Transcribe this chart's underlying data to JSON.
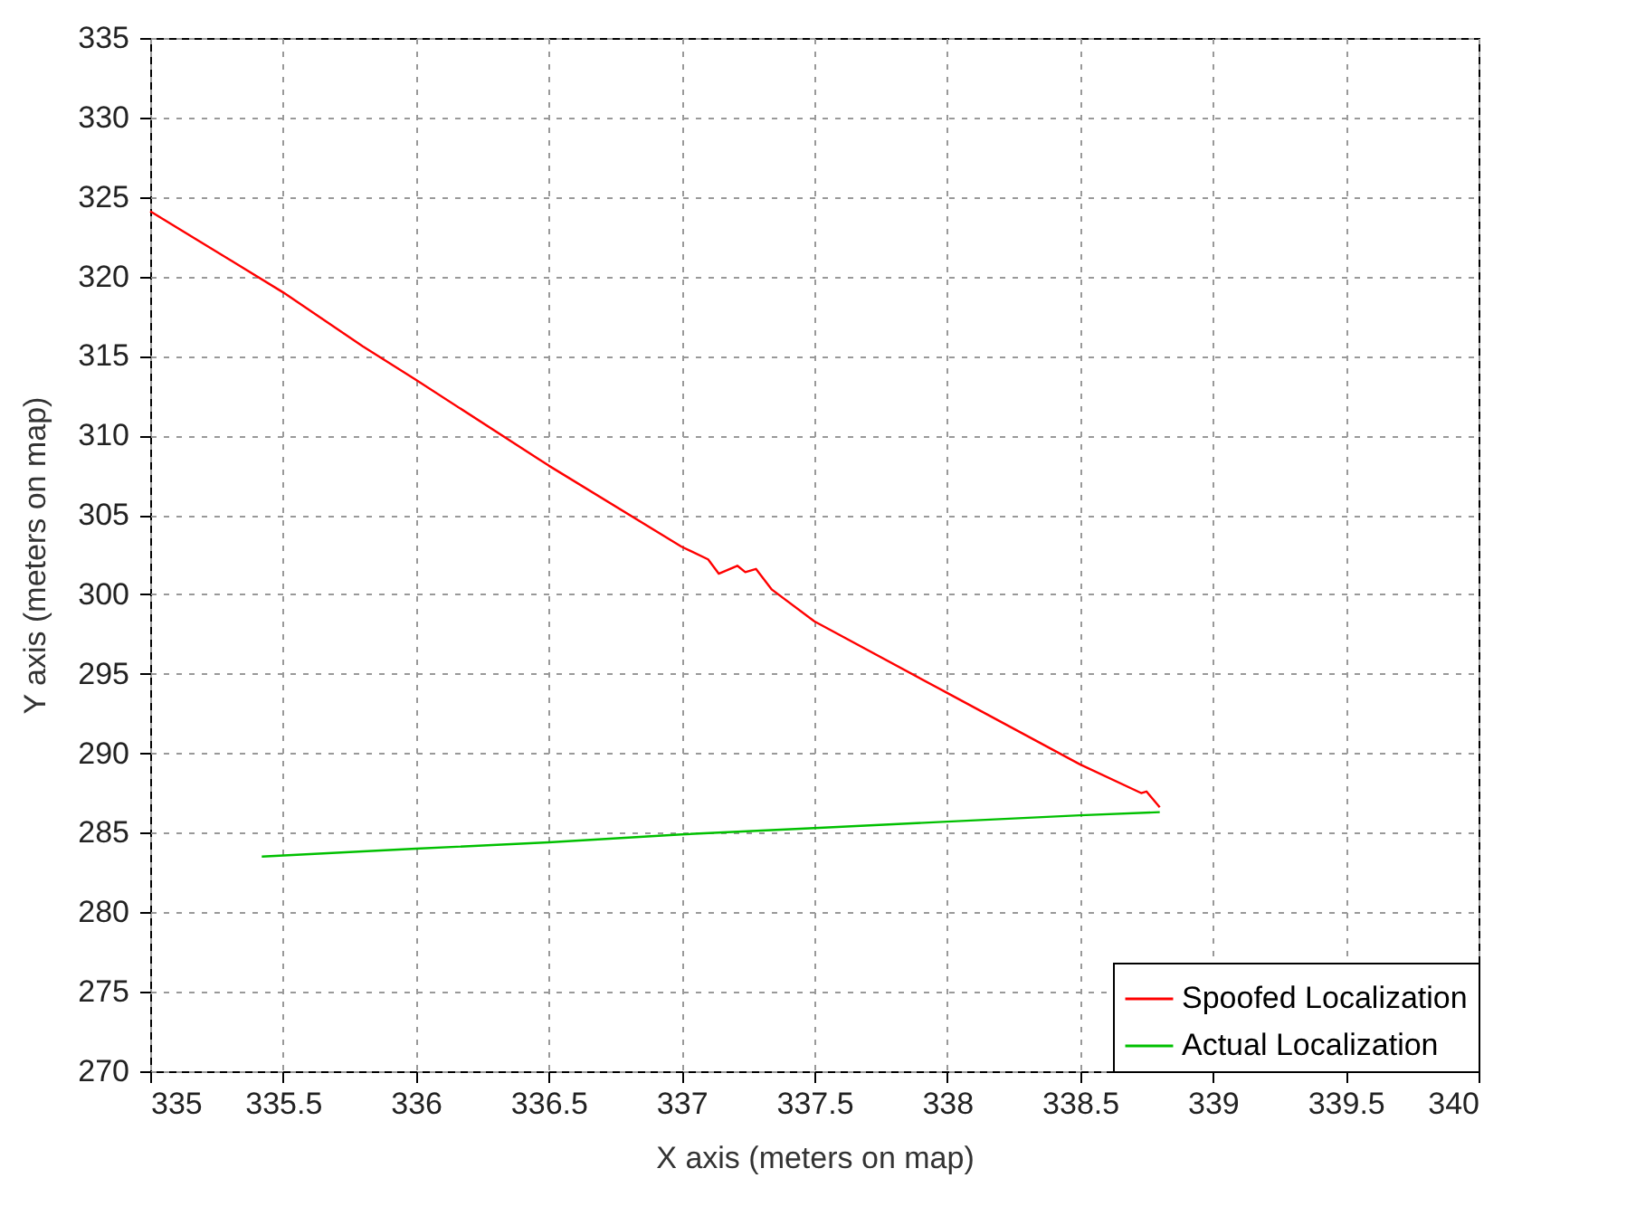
{
  "chart_data": {
    "type": "line",
    "xlabel": "X axis (meters on map)",
    "ylabel": "Y axis (meters on map)",
    "xlim": [
      335,
      340
    ],
    "xticks": [
      335,
      335.5,
      336,
      336.5,
      337,
      337.5,
      338,
      338.5,
      339,
      339.5,
      340
    ],
    "ylim": [
      270,
      335
    ],
    "yticks": [
      270,
      275,
      280,
      285,
      290,
      295,
      300,
      305,
      310,
      315,
      320,
      325,
      330,
      335
    ],
    "grid": true,
    "legend": "bottom right",
    "line_style": "solid",
    "marker": "none",
    "series": [
      {
        "name": "Spoofed Localization",
        "color": "#ff0000",
        "x": [
          335,
          335.5,
          335.8,
          336,
          336.5,
          337,
          337.1,
          337.14,
          337.21,
          337.24,
          337.28,
          337.34,
          337.5,
          338,
          338.5,
          338.73,
          338.75,
          338.8
        ],
        "values": [
          324.1,
          319,
          315.6,
          313.5,
          308.1,
          303,
          302.2,
          301.3,
          301.8,
          301.4,
          301.6,
          300.3,
          298.3,
          293.8,
          289.3,
          287.5,
          287.6,
          286.6
        ]
      },
      {
        "name": "Actual Localization",
        "color": "#00c000",
        "x": [
          335.42,
          336,
          336.5,
          337,
          337.5,
          338,
          338.5,
          338.8
        ],
        "values": [
          283.5,
          284,
          284.4,
          284.9,
          285.3,
          285.7,
          286.1,
          286.3
        ]
      }
    ]
  }
}
